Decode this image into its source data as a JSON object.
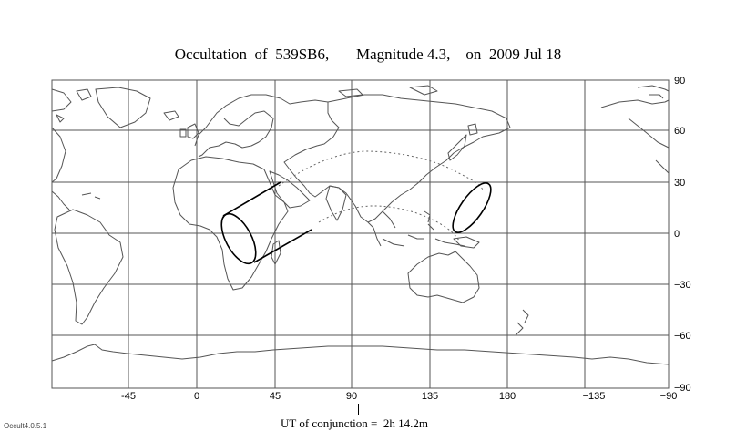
{
  "title": "Occultation  of  539SB6,       Magnitude 4.3,    on  2009 Jul 18",
  "longitude_labels": [
    "-45",
    "0",
    "45",
    "90",
    "135",
    "180",
    "−135",
    "−90"
  ],
  "latitude_labels": [
    "90",
    "60",
    "30",
    "0",
    "−30",
    "−60",
    "−90"
  ],
  "conjunction_label": "UT of conjunction =  2h 14.2m",
  "software_version": "Occult4.0.5.1",
  "colors": {
    "grid": "#555555",
    "coastline": "#555555",
    "path": "#000000",
    "dotted_path": "#666666"
  },
  "icons": [
    "world-map-coastlines",
    "occultation-path-ellipse"
  ]
}
